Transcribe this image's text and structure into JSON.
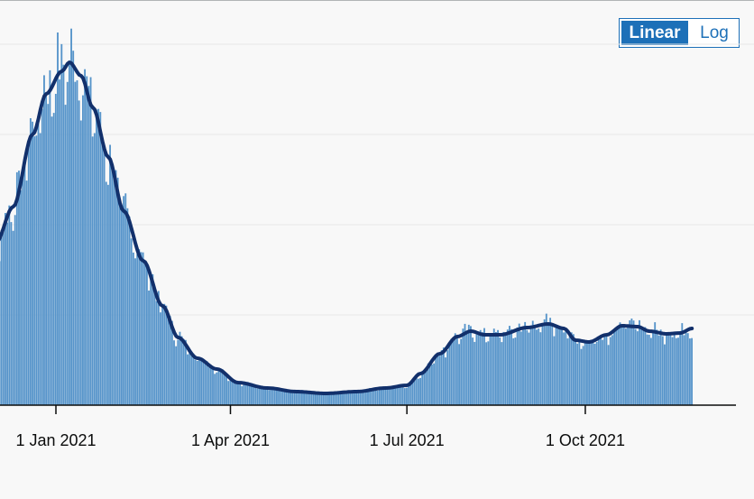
{
  "toggle": {
    "options": [
      "Linear",
      "Log"
    ],
    "selected": "Linear"
  },
  "colors": {
    "bars": "#5694ca",
    "line": "#12306b",
    "grid": "#e8e8e8",
    "axis": "#0b0c0c",
    "toggle_accent": "#1d70b8"
  },
  "chart_data": {
    "type": "bar",
    "x_axis_ticks": [
      "1 Jan 2021",
      "1 Apr 2021",
      "1 Jul 2021",
      "1 Oct 2021"
    ],
    "x_axis_tick_dates": [
      "2021-01-01",
      "2021-04-01",
      "2021-07-01",
      "2021-10-01"
    ],
    "date_range": [
      "2020-11-20",
      "2021-11-25"
    ],
    "ylim": [
      0,
      400
    ],
    "y_gridlines": [
      100,
      200,
      300,
      400
    ],
    "y_tick_labels_visible": false,
    "series": [
      {
        "kind": "bar",
        "values_key": "daily_values"
      },
      {
        "kind": "line",
        "description": "7-day rolling average",
        "anchors": [
          [
            "2020-11-20",
            145
          ],
          [
            "2020-12-01",
            180
          ],
          [
            "2020-12-10",
            220
          ],
          [
            "2020-12-20",
            300
          ],
          [
            "2020-12-27",
            345
          ],
          [
            "2021-01-04",
            370
          ],
          [
            "2021-01-08",
            380
          ],
          [
            "2021-01-14",
            365
          ],
          [
            "2021-01-20",
            330
          ],
          [
            "2021-01-28",
            275
          ],
          [
            "2021-02-05",
            215
          ],
          [
            "2021-02-15",
            160
          ],
          [
            "2021-02-25",
            110
          ],
          [
            "2021-03-05",
            75
          ],
          [
            "2021-03-15",
            52
          ],
          [
            "2021-03-25",
            40
          ],
          [
            "2021-04-05",
            25
          ],
          [
            "2021-04-20",
            19
          ],
          [
            "2021-05-05",
            15
          ],
          [
            "2021-05-20",
            13
          ],
          [
            "2021-06-05",
            15
          ],
          [
            "2021-06-20",
            19
          ],
          [
            "2021-07-01",
            22
          ],
          [
            "2021-07-08",
            35
          ],
          [
            "2021-07-18",
            57
          ],
          [
            "2021-07-27",
            76
          ],
          [
            "2021-08-03",
            82
          ],
          [
            "2021-08-10",
            78
          ],
          [
            "2021-08-18",
            78
          ],
          [
            "2021-09-01",
            86
          ],
          [
            "2021-09-12",
            90
          ],
          [
            "2021-09-20",
            85
          ],
          [
            "2021-09-26",
            72
          ],
          [
            "2021-10-03",
            70
          ],
          [
            "2021-10-12",
            78
          ],
          [
            "2021-10-20",
            88
          ],
          [
            "2021-10-28",
            87
          ],
          [
            "2021-11-03",
            82
          ],
          [
            "2021-11-12",
            79
          ],
          [
            "2021-11-19",
            80
          ],
          [
            "2021-11-25",
            85
          ]
        ]
      }
    ]
  }
}
